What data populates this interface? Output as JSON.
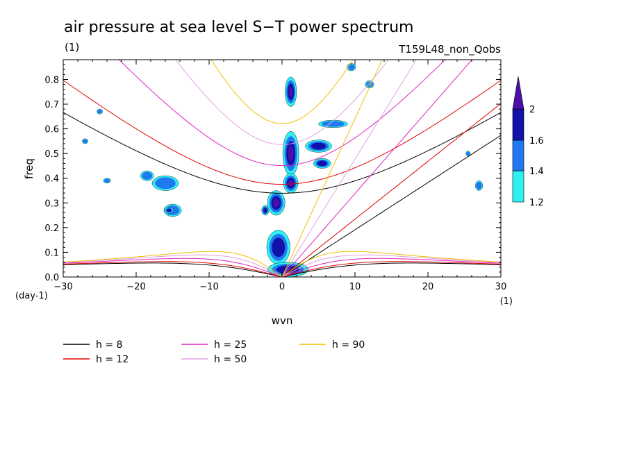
{
  "chart_data": {
    "type": "heatmap",
    "title": "air pressure at sea level S−T power spectrum",
    "subtitle_left": "(1)",
    "subtitle_right": "T159L48_non_Qobs",
    "xlabel": "wvn",
    "ylabel": "freq",
    "x_unit": "(1)",
    "y_unit": "(day-1)",
    "xlim": [
      -30,
      30
    ],
    "ylim": [
      0,
      0.88
    ],
    "x_ticks": [
      -30,
      -20,
      -10,
      0,
      10,
      20,
      30
    ],
    "x_tick_labels": [
      "−30",
      "−20",
      "−10",
      "0",
      "10",
      "20",
      "30"
    ],
    "y_ticks": [
      0.0,
      0.1,
      0.2,
      0.3,
      0.4,
      0.5,
      0.6,
      0.7,
      0.8
    ],
    "y_tick_labels": [
      "0.0",
      "0.1",
      "0.2",
      "0.3",
      "0.4",
      "0.5",
      "0.6",
      "0.7",
      "0.8"
    ],
    "colorbar": {
      "levels": [
        1.2,
        1.4,
        1.6,
        2
      ],
      "level_labels": [
        "1.2",
        "1.4",
        "1.6",
        "2"
      ],
      "colors": [
        "#2ef0f0",
        "#1e78f0",
        "#1212a8",
        "#4b10a8"
      ]
    },
    "dispersion_curves": [
      {
        "label": "h =  8",
        "h": 8,
        "color": "#000000"
      },
      {
        "label": "h = 12",
        "h": 12,
        "color": "#e00000"
      },
      {
        "label": "h = 25",
        "h": 25,
        "color": "#e020c0"
      },
      {
        "label": "h = 50",
        "h": 50,
        "color": "#e0a0e0"
      },
      {
        "label": "h = 90",
        "h": 90,
        "color": "#f0c000"
      }
    ],
    "features": [
      {
        "x": 1.2,
        "y": 0.75,
        "rx": 0.8,
        "ry": 0.06,
        "level": 3
      },
      {
        "x": 1.2,
        "y": 0.5,
        "rx": 1.1,
        "ry": 0.09,
        "level": 3
      },
      {
        "x": 1.2,
        "y": 0.38,
        "rx": 1.0,
        "ry": 0.04,
        "level": 3
      },
      {
        "x": 5.0,
        "y": 0.53,
        "rx": 1.8,
        "ry": 0.025,
        "level": 2
      },
      {
        "x": 5.5,
        "y": 0.46,
        "rx": 1.2,
        "ry": 0.02,
        "level": 2
      },
      {
        "x": 7.0,
        "y": 0.62,
        "rx": 2.0,
        "ry": 0.015,
        "level": 1
      },
      {
        "x": -0.8,
        "y": 0.3,
        "rx": 1.2,
        "ry": 0.05,
        "level": 3
      },
      {
        "x": -0.5,
        "y": 0.12,
        "rx": 1.6,
        "ry": 0.07,
        "level": 2
      },
      {
        "x": 0.8,
        "y": 0.03,
        "rx": 2.8,
        "ry": 0.03,
        "level": 2
      },
      {
        "x": -2.3,
        "y": 0.27,
        "rx": 0.5,
        "ry": 0.02,
        "level": 2
      },
      {
        "x": -16.0,
        "y": 0.38,
        "rx": 1.8,
        "ry": 0.03,
        "level": 1
      },
      {
        "x": -18.5,
        "y": 0.41,
        "rx": 0.9,
        "ry": 0.02,
        "level": 1
      },
      {
        "x": -15.0,
        "y": 0.27,
        "rx": 1.2,
        "ry": 0.025,
        "level": 1
      },
      {
        "x": -15.5,
        "y": 0.27,
        "rx": 0.6,
        "ry": 0.012,
        "level": 2
      },
      {
        "x": 9.5,
        "y": 0.85,
        "rx": 0.6,
        "ry": 0.015,
        "level": 1
      },
      {
        "x": 12.0,
        "y": 0.78,
        "rx": 0.6,
        "ry": 0.015,
        "level": 1
      },
      {
        "x": 27.0,
        "y": 0.37,
        "rx": 0.5,
        "ry": 0.02,
        "level": 1
      },
      {
        "x": -25.0,
        "y": 0.67,
        "rx": 0.4,
        "ry": 0.01,
        "level": 1
      },
      {
        "x": -27.0,
        "y": 0.55,
        "rx": 0.4,
        "ry": 0.01,
        "level": 1
      },
      {
        "x": -24.0,
        "y": 0.39,
        "rx": 0.5,
        "ry": 0.01,
        "level": 1
      },
      {
        "x": 25.5,
        "y": 0.5,
        "rx": 0.3,
        "ry": 0.01,
        "level": 1
      }
    ]
  }
}
